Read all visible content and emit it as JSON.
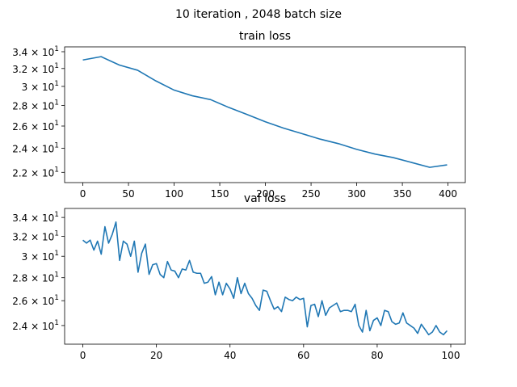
{
  "figure": {
    "suptitle": "10 iteration , 2048 batch size"
  },
  "chart_data": [
    {
      "type": "line",
      "title": "train loss",
      "xlabel": "",
      "ylabel": "",
      "yscale": "log",
      "grid": false,
      "color": "#1f77b4",
      "xlim": [
        -19.95,
        418.95
      ],
      "ylim": [
        21.2,
        34.6
      ],
      "x_ticks": [
        0,
        50,
        100,
        150,
        200,
        250,
        300,
        350,
        400
      ],
      "x_tick_labels": [
        "0",
        "50",
        "100",
        "150",
        "200",
        "250",
        "300",
        "350",
        "400"
      ],
      "y_ticks": [
        22,
        24,
        26,
        28,
        30,
        32,
        34
      ],
      "y_tick_labels": [
        {
          "base": "2.2",
          "times": "× 10",
          "exp": "1"
        },
        {
          "base": "2.4",
          "times": "× 10",
          "exp": "1"
        },
        {
          "base": "2.6",
          "times": "× 10",
          "exp": "1"
        },
        {
          "base": "2.8",
          "times": "× 10",
          "exp": "1"
        },
        {
          "base": "3",
          "times": "× 10",
          "exp": "1"
        },
        {
          "base": "3.2",
          "times": "× 10",
          "exp": "1"
        },
        {
          "base": "3.4",
          "times": "× 10",
          "exp": "1"
        }
      ],
      "x": [
        0,
        20,
        40,
        60,
        80,
        100,
        120,
        140,
        160,
        180,
        200,
        220,
        240,
        260,
        280,
        300,
        320,
        340,
        360,
        380,
        399
      ],
      "y": [
        33.0,
        33.4,
        32.4,
        31.8,
        30.6,
        29.6,
        29.0,
        28.6,
        27.8,
        27.1,
        26.4,
        25.8,
        25.3,
        24.8,
        24.4,
        23.9,
        23.5,
        23.2,
        22.8,
        22.4,
        22.6
      ]
    },
    {
      "type": "line",
      "title": "val loss",
      "xlabel": "",
      "ylabel": "",
      "yscale": "log",
      "grid": false,
      "color": "#1f77b4",
      "xlim": [
        -4.95,
        103.95
      ],
      "ylim": [
        22.6,
        35.0
      ],
      "x_ticks": [
        0,
        20,
        40,
        60,
        80,
        100
      ],
      "x_tick_labels": [
        "0",
        "20",
        "40",
        "60",
        "80",
        "100"
      ],
      "y_ticks": [
        24,
        26,
        28,
        30,
        32,
        34
      ],
      "y_tick_labels": [
        {
          "base": "2.4",
          "times": "× 10",
          "exp": "1"
        },
        {
          "base": "2.6",
          "times": "× 10",
          "exp": "1"
        },
        {
          "base": "2.8",
          "times": "× 10",
          "exp": "1"
        },
        {
          "base": "3",
          "times": "× 10",
          "exp": "1"
        },
        {
          "base": "3.2",
          "times": "× 10",
          "exp": "1"
        },
        {
          "base": "3.4",
          "times": "× 10",
          "exp": "1"
        }
      ],
      "x": [
        0,
        1,
        2,
        3,
        4,
        5,
        6,
        7,
        8,
        9,
        10,
        11,
        12,
        13,
        14,
        15,
        16,
        17,
        18,
        19,
        20,
        21,
        22,
        23,
        24,
        25,
        26,
        27,
        28,
        29,
        30,
        31,
        32,
        33,
        34,
        35,
        36,
        37,
        38,
        39,
        40,
        41,
        42,
        43,
        44,
        45,
        46,
        47,
        48,
        49,
        50,
        51,
        52,
        53,
        54,
        55,
        56,
        57,
        58,
        59,
        60,
        61,
        62,
        63,
        64,
        65,
        66,
        67,
        68,
        69,
        70,
        71,
        72,
        73,
        74,
        75,
        76,
        77,
        78,
        79,
        80,
        81,
        82,
        83,
        84,
        85,
        86,
        87,
        88,
        89,
        90,
        91,
        92,
        93,
        94,
        95,
        96,
        97,
        98,
        99
      ],
      "y": [
        31.6,
        31.3,
        31.6,
        30.6,
        31.5,
        30.2,
        33.0,
        31.3,
        32.2,
        33.5,
        29.6,
        31.5,
        31.2,
        30.0,
        31.5,
        28.5,
        30.3,
        31.2,
        28.3,
        29.2,
        29.3,
        28.3,
        28.0,
        29.5,
        28.7,
        28.6,
        28.0,
        28.8,
        28.7,
        29.6,
        28.5,
        28.4,
        28.4,
        27.5,
        27.6,
        28.1,
        26.5,
        27.6,
        26.5,
        27.5,
        27.0,
        26.2,
        28.0,
        26.6,
        27.5,
        26.6,
        26.2,
        25.6,
        25.2,
        26.9,
        26.8,
        26.0,
        25.3,
        25.5,
        25.1,
        26.3,
        26.1,
        26.0,
        26.3,
        26.1,
        26.2,
        23.9,
        25.6,
        25.7,
        24.7,
        26.0,
        24.8,
        25.4,
        25.6,
        25.8,
        25.1,
        25.2,
        25.2,
        25.1,
        25.7,
        24.0,
        23.5,
        25.2,
        23.6,
        24.4,
        24.6,
        24.0,
        25.2,
        25.1,
        24.3,
        24.1,
        24.2,
        25.0,
        24.2,
        24.0,
        23.8,
        23.4,
        24.1,
        23.7,
        23.3,
        23.5,
        24.0,
        23.5,
        23.3,
        23.6
      ]
    }
  ]
}
